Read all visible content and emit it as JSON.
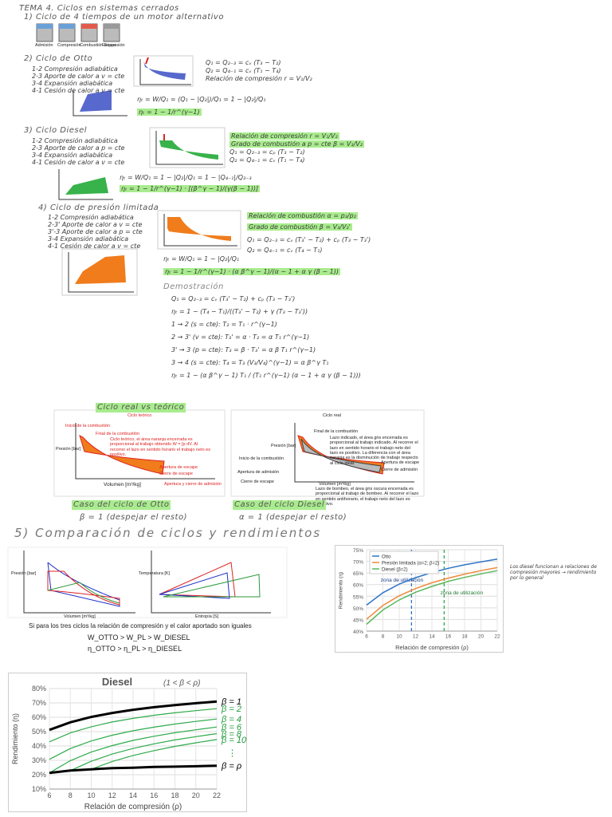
{
  "header": {
    "title": "TEMA 4. Ciclos en sistemas cerrados"
  },
  "s1": {
    "title": "1) Ciclo de 4 tiempos de un motor alternativo",
    "labels": [
      "Admisión",
      "Compresión",
      "Combustión Expansión",
      "Escape"
    ]
  },
  "s2": {
    "title": "2) Ciclo de Otto",
    "steps": [
      "1-2 Compresión adiabática",
      "2-3 Aporte de calor a v = cte",
      "3-4 Expansión adiabática",
      "4-1 Cesión de calor a v = cte"
    ],
    "notes": [
      "Q₁ = Q₂₋₃ = cᵥ (T₃ − T₂)",
      "Q₂ = Q₄₋₁ = cᵥ (T₁ − T₄)",
      "Relación de compresión r = V₁/V₂"
    ],
    "efficiency": [
      "ηₜ = W/Q₁ = (Q₁ − |Q₂|)/Q₁ = 1 − |Q₂|/Q₁",
      "ηₜ = 1 − 1/r^(γ−1)"
    ]
  },
  "s3": {
    "title": "3) Ciclo Diesel",
    "steps": [
      "1-2 Compresión adiabática",
      "2-3 Aporte de calor a p = cte",
      "3-4 Expansión adiabática",
      "4-1 Cesión de calor a v = cte"
    ],
    "notes": [
      "Relación de compresión r = V₁/V₂",
      "Grado de combustión a p = cte β = V₃/V₂",
      "Q₁ = Q₂₋₃ = cₚ (T₃ − T₂)",
      "Q₂ = Q₄₋₁ = cᵥ (T₁ − T₄)"
    ],
    "efficiency": [
      "ηₜ = W/Q₁ = 1 − |Q₂|/Q₁ = 1 − |Q₄₋₁|/Q₂₋₃",
      "ηₜ = 1 − 1/r^(γ−1) · [(β^γ − 1)/(γ(β − 1))]"
    ]
  },
  "s4": {
    "title": "4) Ciclo de presión limitada",
    "steps": [
      "1-2 Compresión adiabática",
      "2-3' Aporte de calor a v = cte",
      "3'-3 Aporte de calor a p = cte",
      "3-4 Expansión adiabática",
      "4-1 Cesión de calor a v = cte"
    ],
    "notes": [
      "Relación de combustión α = p₃/p₂",
      "Grado de combustión β = V₃/V₃'",
      "Q₁ = Q₂₋₃ = cᵥ (T₃' − T₂) + cₚ (T₃ − T₃')",
      "Q₂ = Q₄₋₁ = cᵥ (T₄ − T₁)"
    ],
    "efficiency": [
      "ηₜ = W/Q₁ = 1 − |Q₂|/Q₁",
      "ηₜ = 1 − 1/r^(γ−1) · (α β^γ − 1)/(α − 1 + α γ (β − 1))"
    ],
    "demo_title": "Demostración",
    "demo": [
      "Q₁ = Q₂₋₃ = cᵥ (T₃' − T₂) + cₚ (T₃ − T₃')",
      "ηₜ = 1 − (T₄ − T₁)/((T₃' − T₂) + γ (T₃ − T₃'))",
      "1 → 2 (s = cte): T₂ = T₁ · r^(γ−1)",
      "2 → 3' (v = cte): T₃' = α · T₂ = α T₁ r^(γ−1)",
      "3' → 3 (p = cte): T₃ = β · T₃' = α β T₁ r^(γ−1)",
      "3 → 4 (s = cte): T₄ = T₃ (V₃/V₄)^(γ−1) = α β^γ T₁",
      "ηₜ = 1 − (α β^γ − 1) T₁ / (T₁ r^(γ−1) (α − 1 + α γ (β − 1)))"
    ]
  },
  "real": {
    "title": "Ciclo real vs teórico",
    "theoretical": {
      "title": "Ciclo teórico",
      "labels": [
        "Inicio de la combustión",
        "Final de la combustión",
        "Apertura de escape",
        "Cierre de escape",
        "Apertura y cierre de admisión"
      ],
      "text": "Ciclo teórico, el área naranja encerrada es proporcional al trabajo obtenido W = ∫p dV. Al recorrer el lazo en sentido horario el trabajo neto es positivo.",
      "y_label": "Presión [bar]",
      "x_label": "Volumen [m³/kg]"
    },
    "actual": {
      "title": "Ciclo real",
      "labels": [
        "Final de la combustión",
        "Inicio de la combustión",
        "Apertura de escape",
        "Cierre de admisión",
        "Apertura de admisión",
        "Cierre de escape"
      ],
      "text": "Lazo indicado, el área gris encerrada es proporcional al trabajo indicado. Al recorrer el lazo en sentido horario el trabajo neto del lazo es positivo. La diferencia con el área naranja es la disminución de trabajo respecto al ciclo ideal.",
      "text2": "Lazo de bombeo, el área gris oscura encerrada es proporcional al trabajo de bombeo. Al recorrer el lazo en sentido antihorario, el trabajo neto del lazo es negativo.",
      "y_label": "Presión [bar]",
      "x_label": "Volumen [m³/kg]"
    },
    "cases": [
      {
        "title": "Caso del ciclo de Otto",
        "note": "β = 1 (despejar el resto)"
      },
      {
        "title": "Caso del ciclo Diesel",
        "note": "α = 1 (despejar el resto)"
      }
    ]
  },
  "s5": {
    "title": "5) Comparación de ciclos y rendimientos",
    "axis_labels": [
      "Presión [bar]",
      "Volumen [m³/kg]",
      "Temperatura [K]",
      "Entropía [S]"
    ],
    "statement": "Si para los tres ciclos la relación de compresión y el calor aportado son iguales",
    "work": "W_OTTO > W_PL > W_DIESEL",
    "efficiency": "η_OTTO > η_PL > η_DIESEL",
    "note": "Los diesel funcionan a relaciones de compresión mayores → rendimiento por lo general"
  },
  "chart_data": [
    {
      "type": "line",
      "y_label": "Rendimiento (η)",
      "x_label": "Relación de compresión (ρ)",
      "x": [
        6,
        8,
        10,
        12,
        14,
        16,
        18,
        20,
        22
      ],
      "series": [
        {
          "name": "Otto",
          "color": "#2e75c8",
          "width": 1.5,
          "values": [
            51.2,
            56.5,
            60.2,
            63.0,
            65.2,
            67.0,
            68.5,
            69.8,
            71.0
          ]
        },
        {
          "name": "Presión limitada (α=2; β=2)",
          "color": "#f08a3c",
          "width": 1.5,
          "values": [
            45.1,
            51.0,
            55.2,
            58.3,
            60.8,
            62.8,
            64.5,
            66.0,
            67.3
          ]
        },
        {
          "name": "Diesel (β=2)",
          "color": "#5cb85c",
          "width": 1.5,
          "values": [
            42.9,
            49.1,
            53.4,
            56.7,
            59.2,
            61.4,
            63.1,
            64.6,
            66.0
          ]
        }
      ],
      "xlim": [
        6,
        22
      ],
      "ylim": [
        40,
        75
      ],
      "xticks": [
        6,
        8,
        10,
        12,
        14,
        16,
        18,
        20,
        22
      ],
      "yticks": [
        {
          "value": 40,
          "label": "40%"
        },
        {
          "value": 45,
          "label": "45%"
        },
        {
          "value": 50,
          "label": "50%"
        },
        {
          "value": 55,
          "label": "55%"
        },
        {
          "value": 60,
          "label": "60%"
        },
        {
          "value": 65,
          "label": "65%"
        },
        {
          "value": 70,
          "label": "70%"
        },
        {
          "value": 75,
          "label": "75%"
        }
      ],
      "grid": true,
      "legend": "upper-left",
      "annotations": [
        {
          "text": "zona de utilización",
          "x": 11.5,
          "color": "#2e75c8"
        },
        {
          "text": "zona de utilización",
          "x": 15.5,
          "color": "#2eaa4a"
        }
      ]
    },
    {
      "type": "line",
      "title": "Diesel",
      "subtitle": "(1 < β < ρ)",
      "y_label": "Rendimiento (η)",
      "x_label": "Relación de compresión (ρ)",
      "x": [
        6,
        8,
        10,
        12,
        14,
        16,
        18,
        20,
        22
      ],
      "series": [
        {
          "name": "β = 1",
          "color": "#000000",
          "width": 3,
          "values": [
            51.2,
            56.5,
            60.2,
            63.0,
            65.2,
            67.0,
            68.5,
            69.8,
            71.0
          ]
        },
        {
          "name": "β = 2",
          "color": "#2eaa4a",
          "width": 1.2,
          "values": [
            42.9,
            49.1,
            53.4,
            56.7,
            59.2,
            61.4,
            63.1,
            64.6,
            66.0
          ]
        },
        {
          "name": "β = 4",
          "color": "#2eaa4a",
          "width": 1.2,
          "values": [
            30.7,
            38.2,
            43.5,
            47.5,
            50.6,
            53.1,
            55.3,
            57.1,
            58.8
          ]
        },
        {
          "name": "β = 6",
          "color": "#2eaa4a",
          "width": 1.2,
          "values": [
            21.3,
            29.8,
            35.8,
            40.3,
            43.9,
            46.8,
            49.2,
            51.3,
            53.2
          ]
        },
        {
          "name": "β = 8",
          "color": "#2eaa4a",
          "width": 1.2,
          "values": [
            null,
            22.9,
            29.4,
            34.4,
            38.3,
            41.5,
            44.2,
            46.5,
            48.6
          ]
        },
        {
          "name": "β = 10",
          "color": "#2eaa4a",
          "width": 1.2,
          "values": [
            null,
            null,
            23.8,
            29.2,
            33.4,
            36.8,
            39.7,
            42.2,
            44.5
          ]
        },
        {
          "name": "β = ρ",
          "color": "#000000",
          "width": 3,
          "values": [
            21.3,
            22.9,
            23.8,
            24.6,
            24.9,
            25.4,
            25.6,
            25.9,
            26.3
          ]
        }
      ],
      "ellipsis": "⋮",
      "xlim": [
        6,
        22
      ],
      "ylim": [
        10,
        80
      ],
      "xticks": [
        6,
        8,
        10,
        12,
        14,
        16,
        18,
        20,
        22
      ],
      "yticks": [
        {
          "value": 10,
          "label": "10%"
        },
        {
          "value": 20,
          "label": "20%"
        },
        {
          "value": 30,
          "label": "30%"
        },
        {
          "value": 40,
          "label": "40%"
        },
        {
          "value": 50,
          "label": "50%"
        },
        {
          "value": 60,
          "label": "60%"
        },
        {
          "value": 70,
          "label": "70%"
        },
        {
          "value": 80,
          "label": "80%"
        }
      ],
      "grid": true,
      "legend": "line-end"
    }
  ]
}
